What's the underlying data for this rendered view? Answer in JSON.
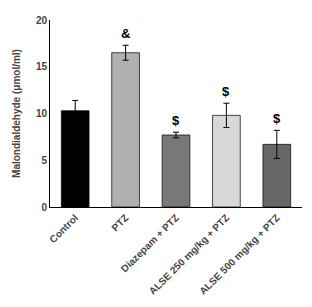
{
  "chart_data": {
    "type": "bar",
    "categories": [
      "Control",
      "PTZ",
      "Diazepam + PTZ",
      "ALSE 250 mg/kg + PTZ",
      "ALSE 500 mg/kg + PTZ"
    ],
    "values": [
      10.3,
      16.5,
      7.7,
      9.8,
      6.7
    ],
    "errors": [
      1.1,
      0.8,
      0.3,
      1.3,
      1.5
    ],
    "colors": [
      "#000000",
      "#b0b0b0",
      "#787878",
      "#d8d8d8",
      "#686868"
    ],
    "annotations": [
      {
        "category": "PTZ",
        "text": "&"
      },
      {
        "category": "Diazepam + PTZ",
        "text": "$"
      },
      {
        "category": "ALSE 250 mg/kg + PTZ",
        "text": "$"
      },
      {
        "category": "ALSE 500 mg/kg + PTZ",
        "text": "$"
      }
    ],
    "ylabel": "Malondialdehyde (μmol/ml)",
    "ylim": [
      0,
      20
    ],
    "yticks": [
      0,
      5,
      10,
      15,
      20
    ],
    "grid": false
  }
}
